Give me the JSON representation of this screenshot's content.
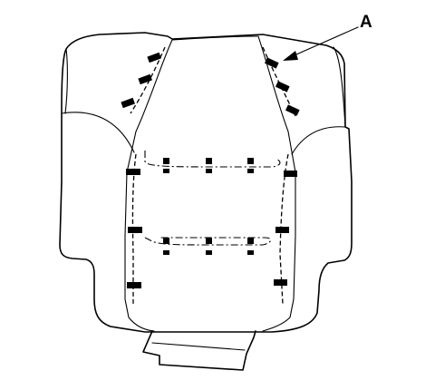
{
  "diagram": {
    "callout_label": "A"
  }
}
